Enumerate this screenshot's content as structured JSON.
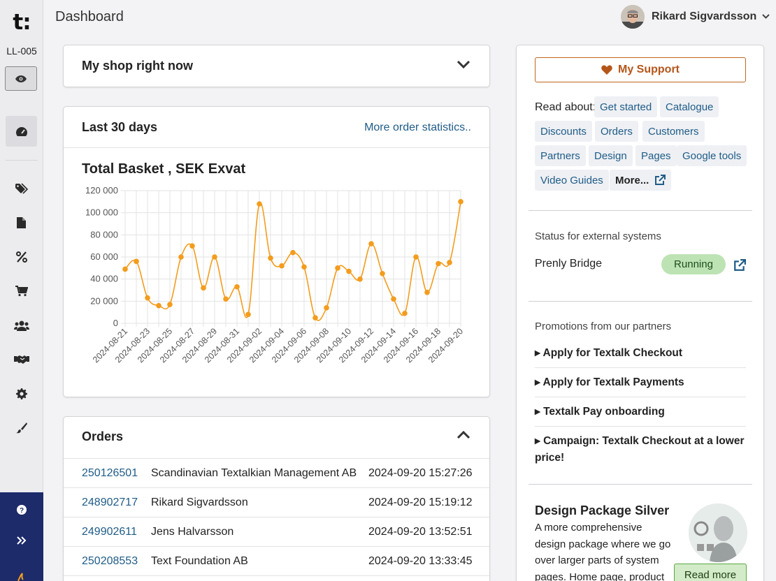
{
  "app": {
    "logo_text": "t:",
    "shop_code": "LL-005",
    "page_title": "Dashboard"
  },
  "user": {
    "name": "Rikard Sigvardsson"
  },
  "sidebar": {
    "items": [
      {
        "icon": "dashboard-gauge-icon",
        "label": "Dashboard"
      },
      {
        "icon": "tags-icon",
        "label": "Products"
      },
      {
        "icon": "file-icon",
        "label": "Pages"
      },
      {
        "icon": "percent-icon",
        "label": "Discounts"
      },
      {
        "icon": "cart-icon",
        "label": "Orders"
      },
      {
        "icon": "users-icon",
        "label": "Customers"
      },
      {
        "icon": "handshake-icon",
        "label": "Partners"
      },
      {
        "icon": "gear-icon",
        "label": "Settings"
      },
      {
        "icon": "brush-icon",
        "label": "Design"
      }
    ],
    "bottom": [
      {
        "icon": "help-icon"
      },
      {
        "icon": "expand-icon"
      }
    ]
  },
  "shop_card": {
    "title": "My shop right now"
  },
  "stats_card": {
    "title": "Last 30 days",
    "link": "More order statistics.."
  },
  "chart_data": {
    "type": "line",
    "title": "Total Basket , SEK Exvat",
    "x": [
      "2024-08-21",
      "2024-08-22",
      "2024-08-23",
      "2024-08-24",
      "2024-08-25",
      "2024-08-26",
      "2024-08-27",
      "2024-08-28",
      "2024-08-29",
      "2024-08-30",
      "2024-08-31",
      "2024-09-01",
      "2024-09-02",
      "2024-09-03",
      "2024-09-04",
      "2024-09-05",
      "2024-09-06",
      "2024-09-07",
      "2024-09-08",
      "2024-09-09",
      "2024-09-10",
      "2024-09-11",
      "2024-09-12",
      "2024-09-13",
      "2024-09-14",
      "2024-09-15",
      "2024-09-16",
      "2024-09-17",
      "2024-09-18",
      "2024-09-19",
      "2024-09-20"
    ],
    "x_tick_labels": [
      "2024-08-21",
      "2024-08-23",
      "2024-08-25",
      "2024-08-27",
      "2024-08-29",
      "2024-08-31",
      "2024-09-02",
      "2024-09-04",
      "2024-09-06",
      "2024-09-08",
      "2024-09-10",
      "2024-09-12",
      "2024-09-14",
      "2024-09-16",
      "2024-09-18",
      "2024-09-20"
    ],
    "values": [
      49000,
      56000,
      23000,
      16000,
      17000,
      60000,
      70000,
      32000,
      60000,
      22000,
      33000,
      8000,
      108000,
      59000,
      52000,
      64000,
      51000,
      5000,
      14000,
      50000,
      47000,
      40000,
      72000,
      45000,
      22000,
      9000,
      60000,
      28000,
      54000,
      55000,
      110000
    ],
    "y_ticks": [
      "0",
      "20 000",
      "40 000",
      "60 000",
      "80 000",
      "100 000",
      "120 000"
    ],
    "ylim": [
      0,
      120000
    ],
    "grid": true,
    "color": "#f39c1d"
  },
  "orders_card": {
    "title": "Orders",
    "rows": [
      {
        "id": "250126501",
        "customer": "Scandinavian Textalkian Management AB",
        "date": "2024-09-20 15:27:26"
      },
      {
        "id": "248902717",
        "customer": "Rikard Sigvardsson",
        "date": "2024-09-20 15:19:12"
      },
      {
        "id": "249902611",
        "customer": "Jens Halvarsson",
        "date": "2024-09-20 13:52:51"
      },
      {
        "id": "250208553",
        "customer": "Text Foundation AB",
        "date": "2024-09-20 13:33:45"
      }
    ]
  },
  "support": {
    "button": "My Support",
    "read_about_label": "Read about:",
    "links": [
      "Get started",
      "Catalogue",
      "Discounts",
      "Orders",
      "Customers",
      "Partners",
      "Design",
      "Pages",
      "Google tools",
      "Video Guides"
    ],
    "more": "More..."
  },
  "external": {
    "title": "Status for external systems",
    "system": "Prenly Bridge",
    "status": "Running"
  },
  "promotions": {
    "title": "Promotions from our partners",
    "items": [
      "Apply for Textalk Checkout",
      "Apply for Textalk Payments",
      "Textalk Pay onboarding",
      "Campaign: Textalk Checkout at a lower price!"
    ]
  },
  "design_package": {
    "title": "Design Package Silver",
    "text": "A more comprehensive design package where we go over larger parts of system pages. Home page, product",
    "button": "Read more"
  },
  "colors": {
    "accent": "#1f5c87",
    "sidebar_dark": "#1d2b6b",
    "support": "#b4561a",
    "running": "#bde3b4"
  }
}
